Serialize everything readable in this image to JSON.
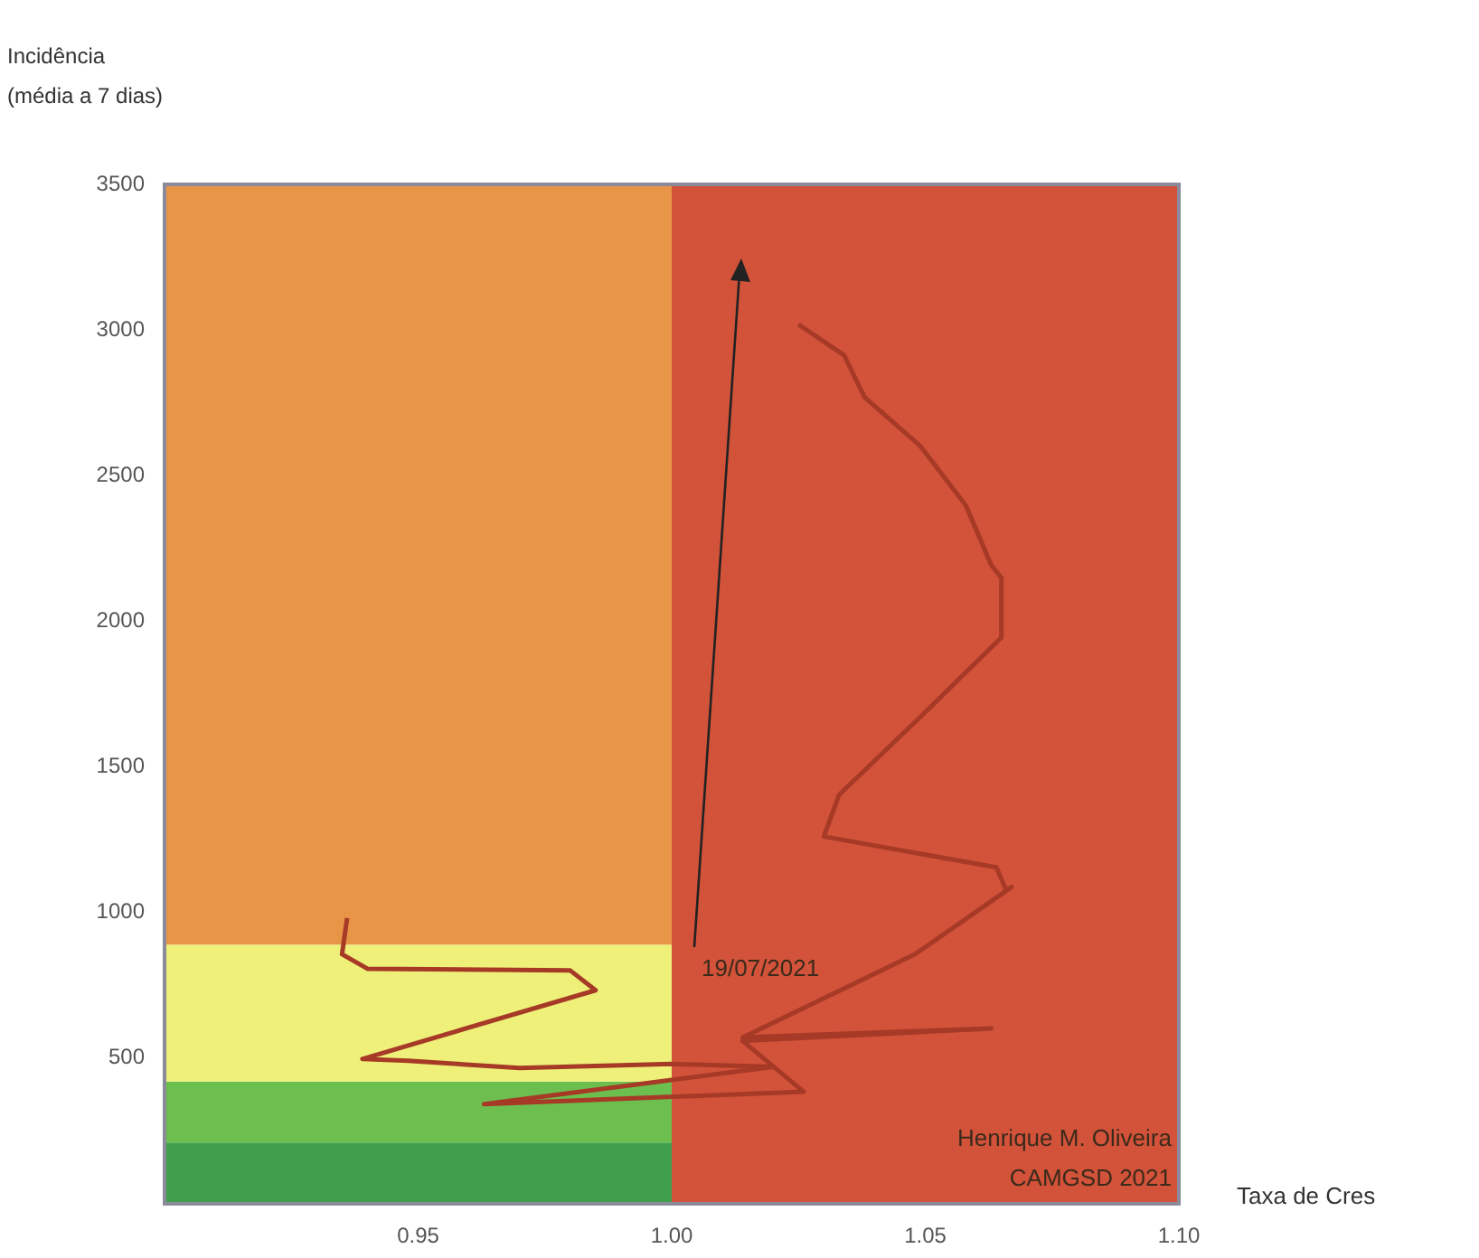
{
  "chart_data": {
    "type": "line",
    "xlabel": "Taxa de Cres",
    "ylabel": "Incidência (média a 7 dias)",
    "xlim": [
      0.9,
      1.1
    ],
    "xticks": [
      {
        "value": 0.95,
        "label": "0.95"
      },
      {
        "value": 1.0,
        "label": "1.00"
      },
      {
        "value": 1.05,
        "label": "1.05"
      },
      {
        "value": 1.1,
        "label": "1.10"
      }
    ],
    "ylim": [
      0,
      3500
    ],
    "yticks": [
      500,
      1000,
      1500,
      2000,
      2500,
      3000,
      3500
    ],
    "grid": false,
    "legend": false,
    "marker": "none",
    "bands": [
      {
        "axis": "y",
        "from": 0,
        "to": 210,
        "color": "#3f9f4a"
      },
      {
        "axis": "y",
        "from": 210,
        "to": 420,
        "color": "#6cbf4f"
      },
      {
        "axis": "y",
        "from": 420,
        "to": 890,
        "color": "#eef07a"
      },
      {
        "axis": "y",
        "from": 890,
        "to": 3500,
        "color": "#e89548"
      },
      {
        "axis": "x",
        "from": 1.0,
        "to": 1.1,
        "color": "#d2523a"
      }
    ],
    "series": [
      {
        "color": "#a63a26",
        "x": [
          0.936,
          0.935,
          0.94,
          0.98,
          0.985,
          0.939,
          0.948,
          0.97,
          1.0,
          1.02,
          0.963,
          1.026,
          1.014,
          1.063,
          1.014,
          1.048,
          1.067,
          1.066,
          1.064,
          1.03,
          1.033,
          1.049,
          1.065,
          1.065,
          1.063,
          1.058,
          1.049,
          1.038,
          1.034,
          1.025
        ],
        "values": [
          981,
          857,
          807,
          801,
          733,
          497,
          491,
          466,
          480,
          470,
          342,
          385,
          559,
          602,
          571,
          857,
          1087,
          1075,
          1155,
          1261,
          1404,
          1671,
          1944,
          2149,
          2193,
          2398,
          2602,
          2770,
          2913,
          3019
        ]
      }
    ],
    "annotations": [
      "19/07/2021",
      "Henrique M. Oliveira",
      "CAMGSD 2021"
    ]
  }
}
